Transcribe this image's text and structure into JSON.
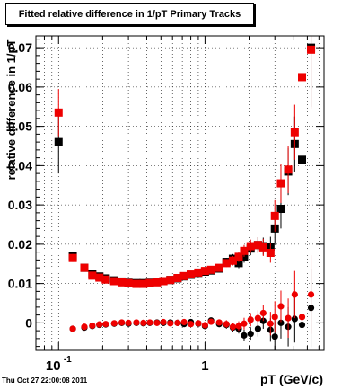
{
  "title": "Fitted relative difference in 1/pT  Primary Tracks",
  "footer": "Thu Oct 27 22:00:08 2011",
  "colors": {
    "series_black": "#000000",
    "series_red": "#ee0000",
    "grid": "#000000"
  },
  "chart_data": {
    "type": "scatter",
    "title": "Fitted relative difference in 1/pT  Primary Tracks",
    "xlabel": "pT (GeV/c)",
    "ylabel": "relative difference in 1/pT",
    "x_scale": "log",
    "xlim": [
      0.07,
      6.5
    ],
    "ylim": [
      -0.007,
      0.073
    ],
    "x_tick_labels": [
      {
        "value": 0.1,
        "label": "10",
        "exp": "-1"
      },
      {
        "value": 1,
        "label": "1",
        "exp": ""
      }
    ],
    "y_ticks": [
      0,
      0.01,
      0.02,
      0.03,
      0.04,
      0.05,
      0.06,
      0.07
    ],
    "y_tick_labels": [
      "0",
      "0.01",
      "0.02",
      "0.03",
      "0.04",
      "0.05",
      "0.06",
      "0.07"
    ],
    "grid": true,
    "series": [
      {
        "color": "#000000",
        "marker": "square",
        "points": [
          [
            0.1,
            0.046,
            0.008
          ],
          [
            0.125,
            0.017,
            0.001
          ],
          [
            0.15,
            0.014,
            0.0008
          ],
          [
            0.17,
            0.0125,
            0.0006
          ],
          [
            0.19,
            0.0118,
            0.0005
          ],
          [
            0.21,
            0.0113,
            0.0005
          ],
          [
            0.24,
            0.0108,
            0.0005
          ],
          [
            0.27,
            0.0105,
            0.0005
          ],
          [
            0.3,
            0.0102,
            0.0005
          ],
          [
            0.34,
            0.0101,
            0.0005
          ],
          [
            0.38,
            0.0101,
            0.0005
          ],
          [
            0.42,
            0.0102,
            0.0005
          ],
          [
            0.47,
            0.0104,
            0.0005
          ],
          [
            0.52,
            0.0106,
            0.0005
          ],
          [
            0.58,
            0.0109,
            0.0005
          ],
          [
            0.65,
            0.0113,
            0.0006
          ],
          [
            0.72,
            0.0118,
            0.0006
          ],
          [
            0.8,
            0.0122,
            0.0007
          ],
          [
            0.9,
            0.0127,
            0.0007
          ],
          [
            1.0,
            0.013,
            0.0008
          ],
          [
            1.1,
            0.0133,
            0.0008
          ],
          [
            1.25,
            0.0138,
            0.0009
          ],
          [
            1.4,
            0.0155,
            0.001
          ],
          [
            1.55,
            0.0163,
            0.0012
          ],
          [
            1.7,
            0.0152,
            0.0013
          ],
          [
            1.85,
            0.0168,
            0.0015
          ],
          [
            2.05,
            0.0189,
            0.0017
          ],
          [
            2.3,
            0.0198,
            0.002
          ],
          [
            2.5,
            0.0195,
            0.0022
          ],
          [
            2.8,
            0.0194,
            0.0025
          ],
          [
            3.0,
            0.024,
            0.004
          ],
          [
            3.3,
            0.029,
            0.005
          ],
          [
            3.7,
            0.0385,
            0.006
          ],
          [
            4.1,
            0.0455,
            0.007
          ],
          [
            4.6,
            0.0415,
            0.01
          ],
          [
            5.3,
            0.07,
            0.015
          ]
        ]
      },
      {
        "color": "#ee0000",
        "marker": "square",
        "points": [
          [
            0.1,
            0.0535,
            0.006
          ],
          [
            0.125,
            0.0165,
            0.001
          ],
          [
            0.15,
            0.014,
            0.0008
          ],
          [
            0.17,
            0.012,
            0.0006
          ],
          [
            0.19,
            0.0115,
            0.0005
          ],
          [
            0.21,
            0.011,
            0.0005
          ],
          [
            0.24,
            0.0106,
            0.0005
          ],
          [
            0.27,
            0.0103,
            0.0005
          ],
          [
            0.3,
            0.0101,
            0.0005
          ],
          [
            0.34,
            0.0099,
            0.0005
          ],
          [
            0.38,
            0.0099,
            0.0005
          ],
          [
            0.42,
            0.0101,
            0.0005
          ],
          [
            0.47,
            0.0103,
            0.0005
          ],
          [
            0.52,
            0.0106,
            0.0005
          ],
          [
            0.58,
            0.0109,
            0.0005
          ],
          [
            0.65,
            0.0114,
            0.0006
          ],
          [
            0.72,
            0.0119,
            0.0006
          ],
          [
            0.8,
            0.0123,
            0.0007
          ],
          [
            0.9,
            0.0128,
            0.0007
          ],
          [
            1.0,
            0.0132,
            0.0008
          ],
          [
            1.1,
            0.0135,
            0.0008
          ],
          [
            1.25,
            0.014,
            0.0009
          ],
          [
            1.4,
            0.0152,
            0.001
          ],
          [
            1.55,
            0.0158,
            0.0012
          ],
          [
            1.7,
            0.0168,
            0.0013
          ],
          [
            1.85,
            0.0183,
            0.0015
          ],
          [
            2.05,
            0.0195,
            0.0017
          ],
          [
            2.3,
            0.0198,
            0.002
          ],
          [
            2.5,
            0.0192,
            0.0022
          ],
          [
            2.8,
            0.0178,
            0.0025
          ],
          [
            3.0,
            0.0272,
            0.004
          ],
          [
            3.3,
            0.0355,
            0.005
          ],
          [
            3.7,
            0.039,
            0.006
          ],
          [
            4.1,
            0.0485,
            0.007
          ],
          [
            4.6,
            0.0625,
            0.01
          ],
          [
            5.3,
            0.0695,
            0.015
          ]
        ]
      },
      {
        "color": "#000000",
        "marker": "circle",
        "points": [
          [
            0.125,
            -0.0015,
            0.0008
          ],
          [
            0.15,
            -0.0012,
            0.0005
          ],
          [
            0.17,
            -0.0008,
            0.0004
          ],
          [
            0.19,
            -0.0005,
            0.0004
          ],
          [
            0.21,
            -0.0004,
            0.0004
          ],
          [
            0.24,
            -0.0002,
            0.0004
          ],
          [
            0.27,
            0.0,
            0.0004
          ],
          [
            0.3,
            -0.0002,
            0.0004
          ],
          [
            0.34,
            0.0,
            0.0004
          ],
          [
            0.38,
            -0.0001,
            0.0004
          ],
          [
            0.42,
            0.0,
            0.0004
          ],
          [
            0.47,
            0.0001,
            0.0004
          ],
          [
            0.52,
            0.0,
            0.0004
          ],
          [
            0.58,
            0.0001,
            0.0004
          ],
          [
            0.65,
            0.0,
            0.0005
          ],
          [
            0.72,
            -0.0003,
            0.0005
          ],
          [
            0.8,
            0.0002,
            0.0005
          ],
          [
            0.9,
            -0.0002,
            0.0006
          ],
          [
            1.0,
            -0.0008,
            0.0006
          ],
          [
            1.1,
            0.0006,
            0.0007
          ],
          [
            1.25,
            -0.0003,
            0.0008
          ],
          [
            1.4,
            -0.0005,
            0.001
          ],
          [
            1.55,
            -0.0012,
            0.001
          ],
          [
            1.7,
            -0.0015,
            0.0012
          ],
          [
            1.85,
            -0.0032,
            0.0015
          ],
          [
            2.05,
            -0.0028,
            0.0017
          ],
          [
            2.3,
            -0.0015,
            0.002
          ],
          [
            2.5,
            0.0005,
            0.002
          ],
          [
            2.8,
            -0.0018,
            0.003
          ],
          [
            3.0,
            -0.0035,
            0.004
          ],
          [
            3.3,
            0.0,
            0.004
          ],
          [
            3.7,
            -0.001,
            0.005
          ],
          [
            4.1,
            0.001,
            0.006
          ],
          [
            4.6,
            -0.0005,
            0.008
          ],
          [
            5.3,
            0.0038,
            0.01
          ]
        ]
      },
      {
        "color": "#ee0000",
        "marker": "circle",
        "points": [
          [
            0.125,
            -0.0015,
            0.0008
          ],
          [
            0.15,
            -0.001,
            0.0005
          ],
          [
            0.17,
            -0.0007,
            0.0004
          ],
          [
            0.19,
            -0.0004,
            0.0004
          ],
          [
            0.21,
            -0.0003,
            0.0004
          ],
          [
            0.24,
            -0.0001,
            0.0004
          ],
          [
            0.27,
            0.0001,
            0.0004
          ],
          [
            0.3,
            0.0,
            0.0004
          ],
          [
            0.34,
            0.0001,
            0.0004
          ],
          [
            0.38,
            0.0,
            0.0004
          ],
          [
            0.42,
            0.0001,
            0.0004
          ],
          [
            0.47,
            0.0,
            0.0004
          ],
          [
            0.52,
            0.0002,
            0.0004
          ],
          [
            0.58,
            -0.0001,
            0.0004
          ],
          [
            0.65,
            0.0,
            0.0005
          ],
          [
            0.72,
            0.0002,
            0.0005
          ],
          [
            0.8,
            -0.0003,
            0.0005
          ],
          [
            0.9,
            -0.0001,
            0.0006
          ],
          [
            1.0,
            -0.0006,
            0.0006
          ],
          [
            1.1,
            0.0003,
            0.0007
          ],
          [
            1.25,
            0.0001,
            0.0008
          ],
          [
            1.4,
            -0.0003,
            0.001
          ],
          [
            1.55,
            -0.001,
            0.001
          ],
          [
            1.7,
            -0.0008,
            0.0012
          ],
          [
            1.85,
            -0.0002,
            0.0015
          ],
          [
            2.05,
            0.0008,
            0.0017
          ],
          [
            2.3,
            0.0012,
            0.002
          ],
          [
            2.5,
            0.0025,
            0.002
          ],
          [
            2.8,
            -0.0002,
            0.003
          ],
          [
            3.0,
            0.0015,
            0.004
          ],
          [
            3.3,
            0.0042,
            0.004
          ],
          [
            3.7,
            0.0012,
            0.005
          ],
          [
            4.1,
            0.0072,
            0.006
          ],
          [
            4.6,
            0.0015,
            0.008
          ],
          [
            5.3,
            0.0072,
            0.01
          ]
        ]
      }
    ]
  }
}
